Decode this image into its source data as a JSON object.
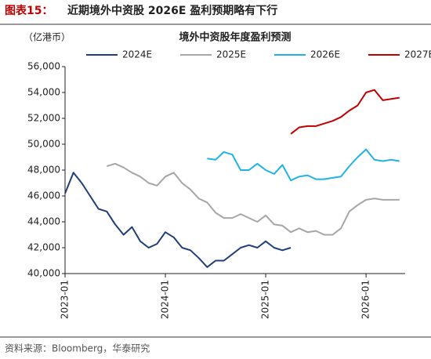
{
  "chart_data": {
    "type": "line",
    "figure_label": "图表15：",
    "title": "近期境外中资股 2026E 盈利预期略有下行",
    "subtitle": "境外中资股年度盈利预测",
    "y_label": "（亿港币）",
    "source": "资料来源：Bloomberg，华泰研究",
    "x": [
      "2023-01",
      "2023-02",
      "2023-03",
      "2023-04",
      "2023-05",
      "2023-06",
      "2023-07",
      "2023-08",
      "2023-09",
      "2023-10",
      "2023-11",
      "2023-12",
      "2024-01",
      "2024-02",
      "2024-03",
      "2024-04",
      "2024-05",
      "2024-06",
      "2024-07",
      "2024-08",
      "2024-09",
      "2024-10",
      "2024-11",
      "2024-12",
      "2025-01",
      "2025-02",
      "2025-03",
      "2025-04",
      "2025-05",
      "2025-06",
      "2025-07",
      "2025-08",
      "2025-09",
      "2025-10",
      "2025-11",
      "2025-12",
      "2026-01",
      "2026-02",
      "2026-03",
      "2026-04",
      "2026-05"
    ],
    "series": [
      {
        "name": "2024E",
        "color": "#1f3f7a",
        "values": [
          46200,
          47800,
          47000,
          46000,
          45000,
          44800,
          43800,
          43000,
          43600,
          42500,
          42000,
          42300,
          43200,
          42800,
          42000,
          41800,
          41200,
          40500,
          41000,
          41000,
          41500,
          42000,
          42200,
          42000,
          42500,
          42000,
          41800,
          42000,
          null,
          null,
          null,
          null,
          null,
          null,
          null,
          null,
          null,
          null,
          null,
          null,
          null
        ]
      },
      {
        "name": "2025E",
        "color": "#a6a6a6",
        "values": [
          null,
          null,
          null,
          null,
          null,
          48300,
          48500,
          48200,
          47800,
          47500,
          47000,
          46800,
          47500,
          47800,
          47000,
          46500,
          45800,
          45500,
          44700,
          44300,
          44300,
          44600,
          44300,
          44000,
          44500,
          43800,
          43700,
          43200,
          43500,
          43200,
          43300,
          43000,
          43000,
          43500,
          44800,
          45300,
          45700,
          45800,
          45700,
          45700,
          45700
        ]
      },
      {
        "name": "2026E",
        "color": "#1fb2e6",
        "values": [
          null,
          null,
          null,
          null,
          null,
          null,
          null,
          null,
          null,
          null,
          null,
          null,
          null,
          null,
          null,
          null,
          null,
          48900,
          48800,
          49400,
          49200,
          48000,
          48000,
          48500,
          48000,
          47700,
          48400,
          47200,
          47500,
          47600,
          47300,
          47300,
          47400,
          47500,
          48300,
          49000,
          49600,
          48800,
          48700,
          48800,
          48700
        ]
      },
      {
        "name": "2027E",
        "color": "#c00000",
        "values": [
          null,
          null,
          null,
          null,
          null,
          null,
          null,
          null,
          null,
          null,
          null,
          null,
          null,
          null,
          null,
          null,
          null,
          null,
          null,
          null,
          null,
          null,
          null,
          null,
          null,
          null,
          null,
          50800,
          51300,
          51400,
          51400,
          51600,
          51800,
          52100,
          52600,
          53000,
          54000,
          54200,
          53400,
          53500,
          53600
        ]
      }
    ],
    "ylim": [
      40000,
      56000
    ],
    "yticks": [
      {
        "value": 40000,
        "label": "40,000"
      },
      {
        "value": 42000,
        "label": "42,000"
      },
      {
        "value": 44000,
        "label": "44,000"
      },
      {
        "value": 46000,
        "label": "46,000"
      },
      {
        "value": 48000,
        "label": "48,000"
      },
      {
        "value": 50000,
        "label": "50,000"
      },
      {
        "value": 52000,
        "label": "52,000"
      },
      {
        "value": 54000,
        "label": "54,000"
      },
      {
        "value": 56000,
        "label": "56,000"
      }
    ],
    "xticks": [
      "2023-01",
      "2024-01",
      "2025-01",
      "2026-01"
    ],
    "legend": "top"
  }
}
